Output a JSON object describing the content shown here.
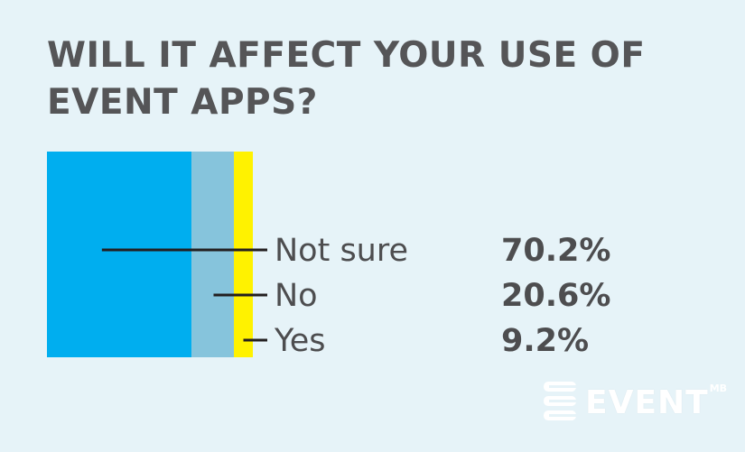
{
  "title": "WILL IT AFFECT YOUR USE OF EVENT APPS?",
  "chart_data": {
    "type": "bar",
    "stacked": true,
    "orientation": "horizontal-100-percent",
    "categories": [
      "Not sure",
      "No",
      "Yes"
    ],
    "values": [
      70.2,
      20.6,
      9.2
    ],
    "value_labels": [
      "70.2%",
      "20.6%",
      "9.2%"
    ],
    "colors": [
      "#00aeef",
      "#86c4dc",
      "#fff200"
    ],
    "unit": "%",
    "title": "WILL IT AFFECT YOUR USE OF EVENT APPS?",
    "xlabel": "",
    "ylabel": "",
    "grid": false,
    "legend": "right"
  },
  "logo": {
    "text": "EVENT",
    "superscript": "MB",
    "icon": "eventmb-logo-icon"
  }
}
